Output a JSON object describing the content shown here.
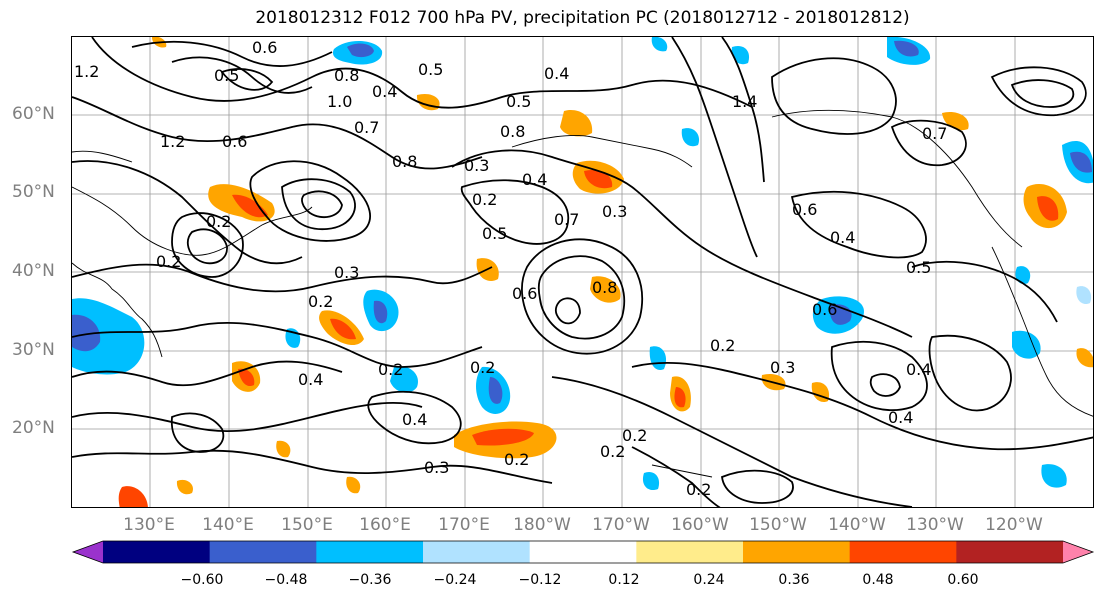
{
  "title": "2018012312 F012 700 hPa PV, precipitation PC (2018012712 - 2018012812)",
  "lat_labels": [
    "60°N",
    "50°N",
    "40°N",
    "30°N",
    "20°N"
  ],
  "lon_labels": [
    "130°E",
    "140°E",
    "150°E",
    "160°E",
    "170°E",
    "180°W",
    "170°W",
    "160°W",
    "150°W",
    "140°W",
    "130°W",
    "120°W"
  ],
  "contour_labels": [
    "0.6",
    "0.5",
    "0.8",
    "0.5",
    "1.0",
    "0.4",
    "1.2",
    "1.2",
    "0.7",
    "0.8",
    "0.5",
    "0.6",
    "0.3",
    "0.2",
    "0.8",
    "0.4",
    "0.7",
    "0.3",
    "0.5",
    "0.8",
    "0.6",
    "0.3",
    "0.2",
    "0.2",
    "0.4",
    "0.2",
    "0.2",
    "0.4",
    "0.3",
    "0.2",
    "0.2",
    "0.2",
    "0.2",
    "0.6",
    "0.4",
    "0.5",
    "0.3",
    "0.2",
    "0.4",
    "0.6",
    "0.7",
    "1.4",
    "0.4",
    "0.4",
    "0.2"
  ],
  "colorbar": {
    "ticks": [
      "−0.60",
      "−0.48",
      "−0.36",
      "−0.24",
      "−0.12",
      "0.12",
      "0.24",
      "0.36",
      "0.48",
      "0.60"
    ],
    "colors": [
      "#9a32cd",
      "#000080",
      "#3a5fcd",
      "#00bfff",
      "#b0e2ff",
      "#ffffff",
      "#ffec8b",
      "#ffa500",
      "#ff4500",
      "#b22222",
      "#ff82ab"
    ]
  }
}
